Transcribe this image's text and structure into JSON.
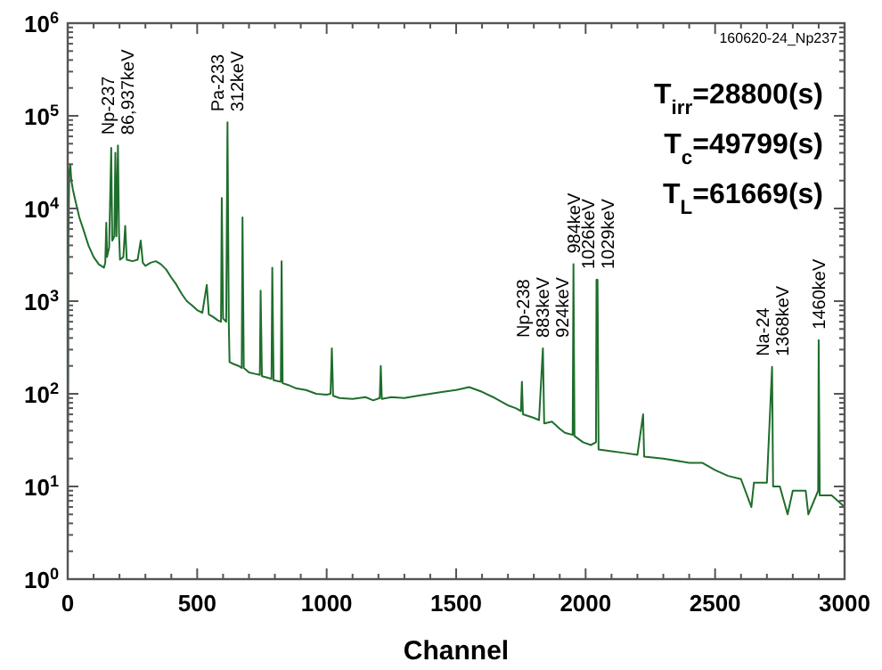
{
  "chart_data": {
    "type": "line",
    "xlabel": "Channel",
    "log": "y",
    "grid": false,
    "marker": "none",
    "line_style": "solid",
    "xlim": [
      0,
      3000
    ],
    "ylim": [
      1,
      1000000
    ],
    "xticks": [
      0,
      {
        "value": 100,
        "label": null
      },
      {
        "value": 200,
        "label": null
      },
      {
        "value": 300,
        "label": null
      },
      {
        "value": 400,
        "label": null
      },
      500,
      {
        "value": 600,
        "label": null
      },
      {
        "value": 700,
        "label": null
      },
      {
        "value": 800,
        "label": null
      },
      {
        "value": 900,
        "label": null
      },
      1000,
      {
        "value": 1100,
        "label": null
      },
      {
        "value": 1200,
        "label": null
      },
      {
        "value": 1300,
        "label": null
      },
      {
        "value": 1400,
        "label": null
      },
      1500,
      {
        "value": 1600,
        "label": null
      },
      {
        "value": 1700,
        "label": null
      },
      {
        "value": 1800,
        "label": null
      },
      {
        "value": 1900,
        "label": null
      },
      2000,
      {
        "value": 2100,
        "label": null
      },
      {
        "value": 2200,
        "label": null
      },
      {
        "value": 2300,
        "label": null
      },
      {
        "value": 2400,
        "label": null
      },
      2500,
      {
        "value": 2600,
        "label": null
      },
      {
        "value": 2700,
        "label": null
      },
      {
        "value": 2800,
        "label": null
      },
      {
        "value": 2900,
        "label": null
      },
      3000
    ],
    "yticks": [
      {
        "value": 1,
        "label": "10$^{0}$"
      },
      {
        "value": 10,
        "label": "10$^{1}$"
      },
      {
        "value": 100,
        "label": "10$^{2}$"
      },
      {
        "value": 1000,
        "label": "10$^{3}$"
      },
      {
        "value": 10000,
        "label": "10$^{4}$"
      },
      {
        "value": 100000,
        "label": "10$^{5}$"
      },
      {
        "value": 1000000,
        "label": "10$^{6}$"
      }
    ],
    "series": [
      {
        "color": "#1e6e2c",
        "x": [
          0,
          3,
          6,
          10,
          14,
          20,
          30,
          45,
          60,
          80,
          100,
          120,
          140,
          145,
          149,
          152,
          160,
          168,
          172,
          180,
          184,
          188,
          194,
          198,
          202,
          215,
          222,
          228,
          250,
          270,
          282,
          290,
          300,
          320,
          340,
          360,
          380,
          400,
          420,
          440,
          460,
          480,
          500,
          520,
          537,
          545,
          560,
          580,
          592,
          595,
          600,
          612,
          617,
          622,
          625,
          640,
          660,
          672,
          675,
          680,
          700,
          720,
          742,
          745,
          750,
          770,
          787,
          790,
          795,
          823,
          826,
          830,
          850,
          880,
          920,
          960,
          1000,
          1015,
          1020,
          1025,
          1050,
          1100,
          1150,
          1180,
          1205,
          1209,
          1213,
          1250,
          1300,
          1350,
          1400,
          1450,
          1500,
          1550,
          1600,
          1650,
          1700,
          1730,
          1750,
          1754,
          1758,
          1800,
          1820,
          1835,
          1840,
          1870,
          1900,
          1920,
          1950,
          1953,
          1957,
          1990,
          2020,
          2040,
          2042,
          2046,
          2050,
          2100,
          2150,
          2200,
          2222,
          2226,
          2300,
          2400,
          2450,
          2500,
          2550,
          2600,
          2640,
          2650,
          2700,
          2720,
          2724,
          2750,
          2780,
          2800,
          2850,
          2860,
          2898,
          2900,
          2904,
          2950,
          3000
        ],
        "values": [
          1,
          5000,
          25000,
          30000,
          20000,
          16000,
          12000,
          8000,
          6000,
          4000,
          3000,
          2500,
          2300,
          2600,
          7000,
          3000,
          3800,
          45000,
          4500,
          5000,
          40000,
          5000,
          48000,
          5500,
          2800,
          3000,
          6500,
          2800,
          2700,
          2800,
          4500,
          2600,
          2400,
          2600,
          2700,
          2500,
          2200,
          1800,
          1500,
          1200,
          1000,
          900,
          800,
          750,
          1500,
          720,
          680,
          620,
          600,
          13000,
          650,
          600,
          85000,
          600,
          220,
          210,
          200,
          190,
          8000,
          190,
          170,
          165,
          160,
          1300,
          155,
          150,
          145,
          2300,
          140,
          135,
          2700,
          130,
          125,
          115,
          110,
          100,
          98,
          100,
          310,
          95,
          90,
          88,
          92,
          85,
          90,
          200,
          88,
          92,
          90,
          95,
          100,
          105,
          110,
          118,
          105,
          90,
          75,
          70,
          65,
          135,
          60,
          55,
          52,
          310,
          48,
          50,
          42,
          38,
          36,
          2500,
          35,
          30,
          28,
          30,
          1700,
          1700,
          25,
          24,
          23,
          22,
          60,
          21,
          20,
          18,
          18,
          15,
          13,
          12,
          6,
          11,
          11,
          195,
          10,
          10,
          5,
          9,
          9,
          5,
          9,
          380,
          8,
          8,
          6
        ]
      }
    ],
    "annotations": [
      {
        "text": "Np-237\n86,937keV",
        "x": 194,
        "y": 48000
      },
      {
        "text": "Pa-233\n312keV",
        "x": 617,
        "y": 85000
      },
      {
        "text": "Np-238\n883keV\n924keV",
        "x": 1835,
        "y": 310
      },
      {
        "text": "984keV",
        "x": 1953,
        "y": 2500
      },
      {
        "text": "1026keV\n1029keV",
        "x": 2046,
        "y": 1700
      },
      {
        "text": "Na-24\n1368keV",
        "x": 2720,
        "y": 195
      },
      {
        "text": "1460keV",
        "x": 2900,
        "y": 380
      },
      "160620-24_Np237",
      "T$_{irr}$=28800(s)",
      "T$_{c}$=49799(s)",
      "T$_{L}$=61669(s)"
    ]
  }
}
